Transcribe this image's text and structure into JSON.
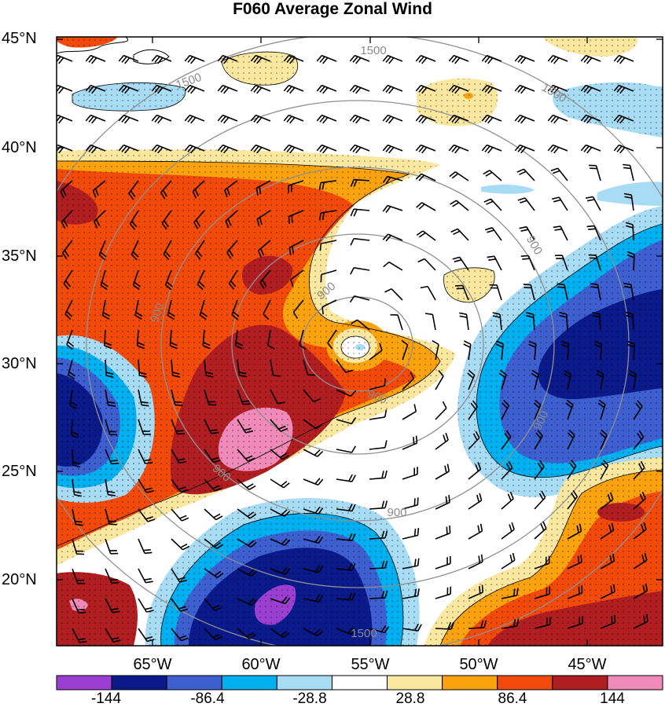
{
  "title": "F060 Average Zonal Wind",
  "lat_labels": [
    "45°N",
    "40°N",
    "35°N",
    "30°N",
    "25°N",
    "20°N"
  ],
  "lon_labels": [
    "65°W",
    "60°W",
    "55°W",
    "50°W",
    "45°W"
  ],
  "colorbar": {
    "labels": [
      "-144",
      "-86.4",
      "-28.8",
      "28.8",
      "86.4",
      "144"
    ],
    "colors": [
      "#9a3fd1",
      "#0a1a8a",
      "#3d5fd0",
      "#00b0f0",
      "#a8dcf5",
      "#ffffff",
      "#fbe8a0",
      "#fba30e",
      "#f24a0a",
      "#b01e22",
      "#f08ab8"
    ]
  },
  "contour_labels": [
    "1500",
    "1500",
    "1500",
    "900",
    "900",
    "900",
    "900",
    "900",
    "900",
    "900",
    "1500"
  ]
}
